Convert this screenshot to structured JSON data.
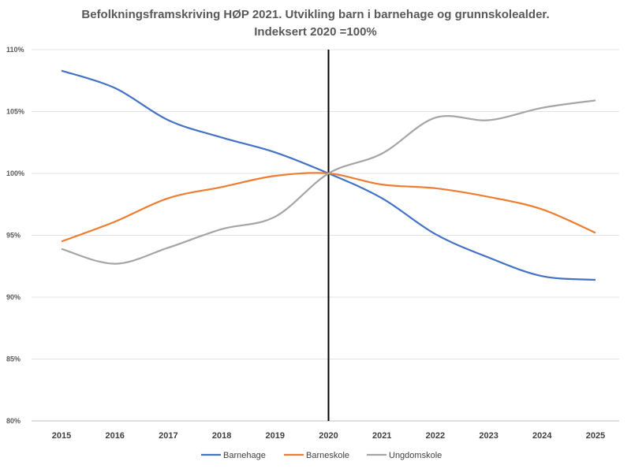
{
  "chart_data": {
    "type": "line",
    "title": "Befolkningsframskriving HØP 2021. Utvikling barn i barnehage og grunnskolealder.",
    "subtitle": "Indeksert  2020 =100%",
    "categories": [
      "2015",
      "2016",
      "2017",
      "2018",
      "2019",
      "2020",
      "2021",
      "2022",
      "2023",
      "2024",
      "2025"
    ],
    "y_ticks": [
      "80%",
      "85%",
      "90%",
      "95%",
      "100%",
      "105%",
      "110%"
    ],
    "ylim": [
      80,
      110
    ],
    "grid": true,
    "legend_position": "bottom",
    "reference_line": "2020",
    "series": [
      {
        "name": "Barnehage",
        "color": "#4472C4",
        "values": [
          108.3,
          106.9,
          104.3,
          102.9,
          101.7,
          100,
          98.0,
          95.1,
          93.2,
          91.7,
          91.4
        ]
      },
      {
        "name": "Barneskole",
        "color": "#ED7D31",
        "values": [
          94.5,
          96.1,
          98.0,
          98.9,
          99.8,
          100,
          99.1,
          98.8,
          98.1,
          97.1,
          95.2
        ]
      },
      {
        "name": "Ungdomskole",
        "color": "#A5A5A5",
        "values": [
          93.9,
          92.7,
          94.0,
          95.5,
          96.5,
          100,
          101.6,
          104.5,
          104.3,
          105.3,
          105.9
        ]
      }
    ]
  }
}
